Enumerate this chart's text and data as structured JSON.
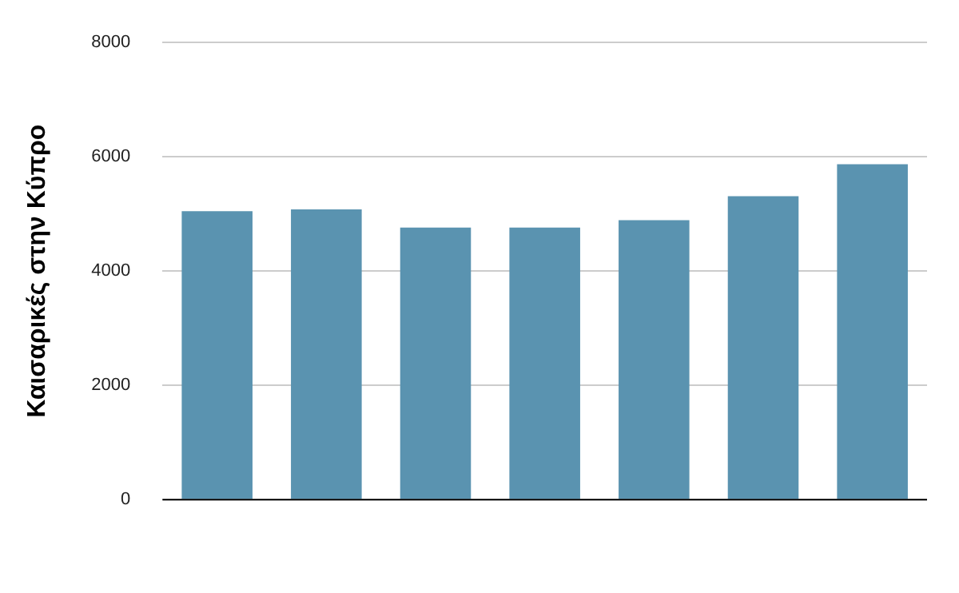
{
  "chart_data": {
    "type": "bar",
    "ylabel": "Καισαρικές στην Κύπρο",
    "categories": [
      null,
      null,
      null,
      null,
      null,
      null,
      null
    ],
    "values": [
      5050,
      5080,
      4760,
      4760,
      4890,
      5310,
      5870
    ],
    "color": "#5a93b0",
    "ylim": [
      0,
      8000
    ],
    "yticks": [
      0,
      2000,
      4000,
      6000,
      8000
    ],
    "grid": "y",
    "legend": false
  }
}
